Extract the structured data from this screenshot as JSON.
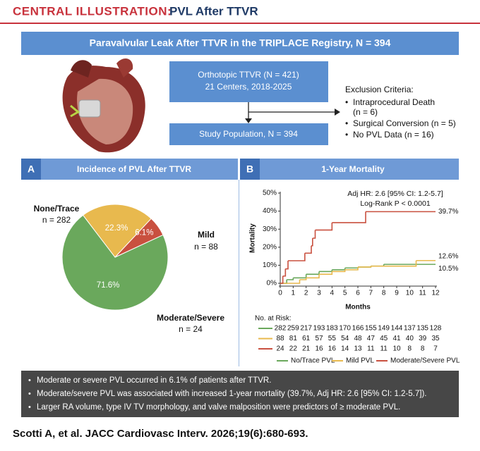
{
  "header": {
    "label": "CENTRAL ILLUSTRATION:",
    "title": "PVL After TTVR"
  },
  "banner": "Paravalvular Leak After TTVR in the TRIPLACE Registry, N = 394",
  "flow": {
    "box1": [
      "Orthotopic TTVR (N = 421)",
      "21 Centers, 2018-2025"
    ],
    "box2": "Study Population, N = 394",
    "exclusion_title": "Exclusion Criteria:",
    "exclusions": [
      "Intraprocedural Death",
      "(n = 6)",
      "Surgical Conversion (n = 5)",
      "No PVL Data (n = 16)"
    ]
  },
  "panels": [
    {
      "letter": "A",
      "title": "Incidence of PVL After TTVR"
    },
    {
      "letter": "B",
      "title": "1-Year Mortality"
    }
  ],
  "chart_data": [
    {
      "type": "pie",
      "categories": [
        "None/Trace",
        "Mild",
        "Moderate/Severe"
      ],
      "values": [
        71.6,
        22.3,
        6.1
      ],
      "value_labels": [
        "71.6%",
        "22.3%",
        "6.1%"
      ],
      "counts": [
        282,
        88,
        24
      ],
      "count_labels": [
        "n = 282",
        "n = 88",
        "n = 24"
      ],
      "colors": [
        "#6aa85c",
        "#e8b94e",
        "#c9503f"
      ]
    },
    {
      "type": "line",
      "step": true,
      "ylabel": "Mortality",
      "xlabel": "Months",
      "xlim": [
        0,
        12
      ],
      "xticks": [
        0,
        1,
        2,
        3,
        4,
        5,
        6,
        7,
        8,
        9,
        10,
        11,
        12
      ],
      "ylim": [
        0,
        50
      ],
      "yticks": [
        {
          "value": 0,
          "label": "0%"
        },
        {
          "value": 10,
          "label": "10%"
        },
        {
          "value": 20,
          "label": "20%"
        },
        {
          "value": 30,
          "label": "30%"
        },
        {
          "value": 40,
          "label": "40%"
        },
        {
          "value": 50,
          "label": "50%"
        }
      ],
      "annotations": [
        "Adj HR: 2.6 [95% CI: 1.2-5.7]",
        "Log-Rank P < 0.0001"
      ],
      "risk_title": "No. at Risk:",
      "series": [
        {
          "name": "No/Trace PVL",
          "color": "#6aa85c",
          "x": [
            0,
            0.5,
            1,
            2,
            3,
            4,
            5,
            6,
            7,
            8,
            12
          ],
          "values": [
            0,
            2,
            3,
            5,
            6.5,
            7.5,
            8.5,
            9,
            9.5,
            10.5,
            10.5
          ],
          "value_labels": [
            null,
            null,
            null,
            null,
            null,
            null,
            null,
            null,
            null,
            null,
            "10.5%"
          ],
          "at_risk": [
            282,
            259,
            217,
            193,
            183,
            170,
            166,
            155,
            149,
            144,
            137,
            135,
            128
          ]
        },
        {
          "name": "Mild PVL",
          "color": "#e8b94e",
          "x": [
            0,
            1.5,
            2,
            3,
            4,
            5,
            6,
            7,
            10.5,
            12
          ],
          "values": [
            0,
            2,
            3,
            5,
            6.5,
            7.5,
            9,
            9.5,
            12.6,
            12.6
          ],
          "value_labels": [
            null,
            null,
            null,
            null,
            null,
            null,
            null,
            null,
            null,
            "12.6%"
          ],
          "at_risk": [
            88,
            81,
            61,
            57,
            55,
            54,
            48,
            47,
            45,
            41,
            40,
            39,
            35
          ]
        },
        {
          "name": "Moderate/Severe PVL",
          "color": "#c9503f",
          "x": [
            0,
            0.2,
            0.4,
            0.6,
            1.9,
            2.4,
            2.5,
            2.7,
            4,
            6.6,
            12
          ],
          "values": [
            0,
            4,
            8,
            12.5,
            16.7,
            20.8,
            25,
            29.5,
            33.6,
            39.7,
            39.7
          ],
          "value_labels": [
            null,
            null,
            null,
            null,
            null,
            null,
            null,
            null,
            null,
            null,
            "39.7%"
          ],
          "at_risk": [
            24,
            22,
            21,
            16,
            16,
            14,
            13,
            11,
            11,
            10,
            8,
            8,
            7
          ]
        }
      ]
    }
  ],
  "bullets": [
    "Moderate or severe PVL occurred in 6.1% of patients after TTVR.",
    "Moderate/severe PVL was associated with increased 1-year mortality (39.7%, Adj HR: 2.6 [95% CI: 1.2-5.7]).",
    "Larger RA volume, type IV TV morphology, and valve malposition were predictors of ≥ moderate PVL."
  ],
  "citation": "Scotti A, et al. JACC Cardiovasc Interv. 2026;19(6):680-693."
}
